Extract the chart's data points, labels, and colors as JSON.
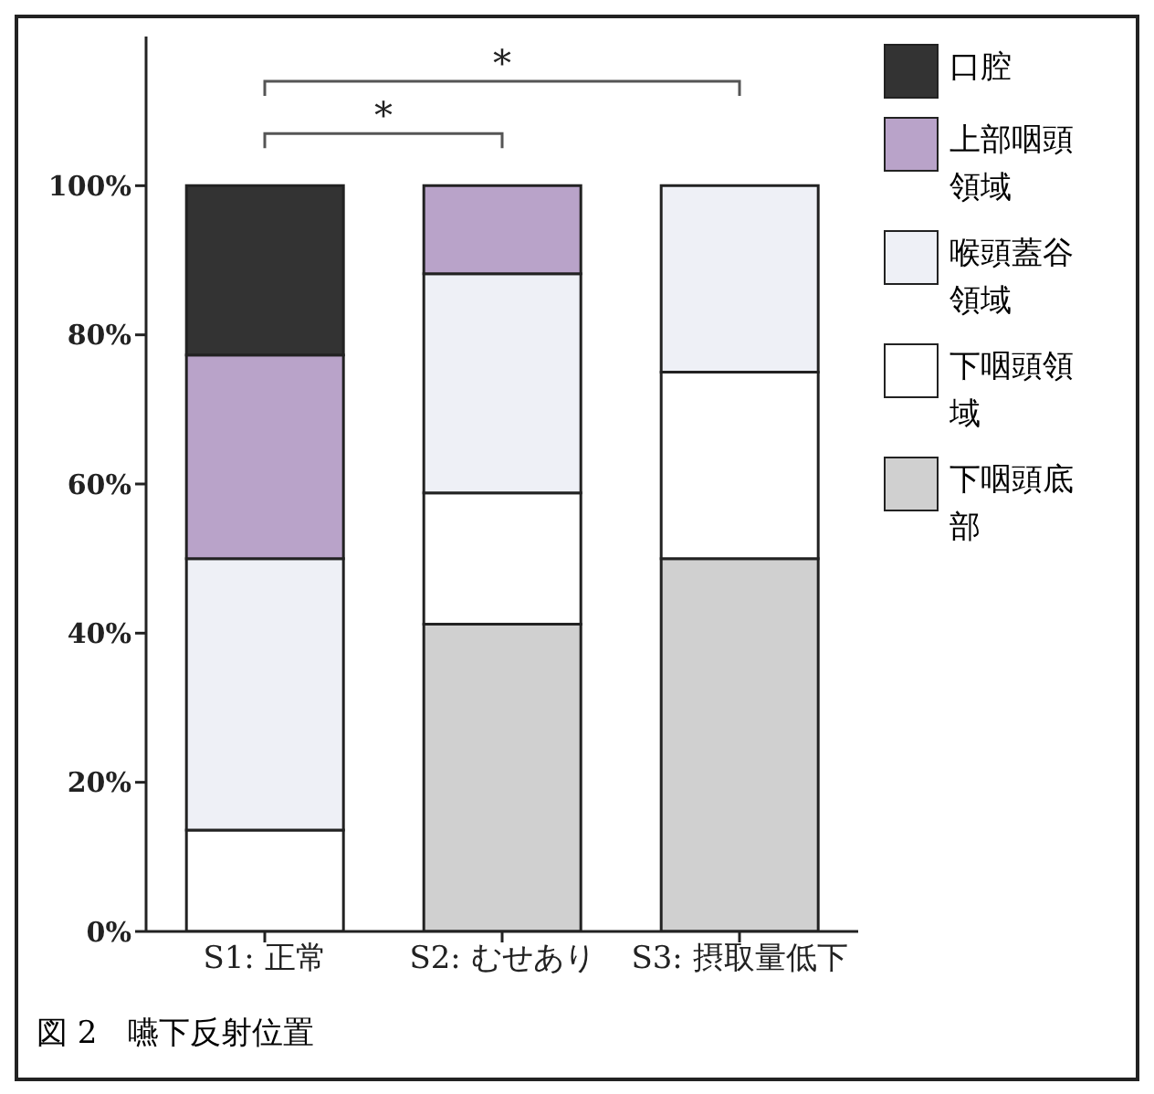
{
  "chart_data": {
    "type": "bar",
    "stacked": true,
    "categories": [
      "S1: 正常",
      "S2: むせあり",
      "S3: 摂取量低下"
    ],
    "series": [
      {
        "name": "下咽頭底部",
        "color": "#d0d0d0",
        "values": [
          0,
          41.2,
          50
        ]
      },
      {
        "name": "下咽頭領域",
        "color": "#ffffff",
        "values": [
          13.6,
          17.6,
          25
        ]
      },
      {
        "name": "喉頭蓋谷領域",
        "color": "#eef0f6",
        "values": [
          36.4,
          29.4,
          25
        ]
      },
      {
        "name": "上部咽頭領域",
        "color": "#b9a3c9",
        "values": [
          27.3,
          11.8,
          0
        ]
      },
      {
        "name": "口腔",
        "color": "#333333",
        "values": [
          22.7,
          0,
          0
        ]
      }
    ],
    "ylim": [
      0,
      120
    ],
    "yticks": [
      {
        "value": 0,
        "label": "0%"
      },
      {
        "value": 20,
        "label": "20%"
      },
      {
        "value": 40,
        "label": "40%"
      },
      {
        "value": 60,
        "label": "60%"
      },
      {
        "value": 80,
        "label": "80%"
      },
      {
        "value": 100,
        "label": "100%"
      }
    ],
    "legend": "right",
    "grid": false,
    "annotations": [
      "*",
      "*",
      "図 2　嚥下反射位置"
    ]
  }
}
